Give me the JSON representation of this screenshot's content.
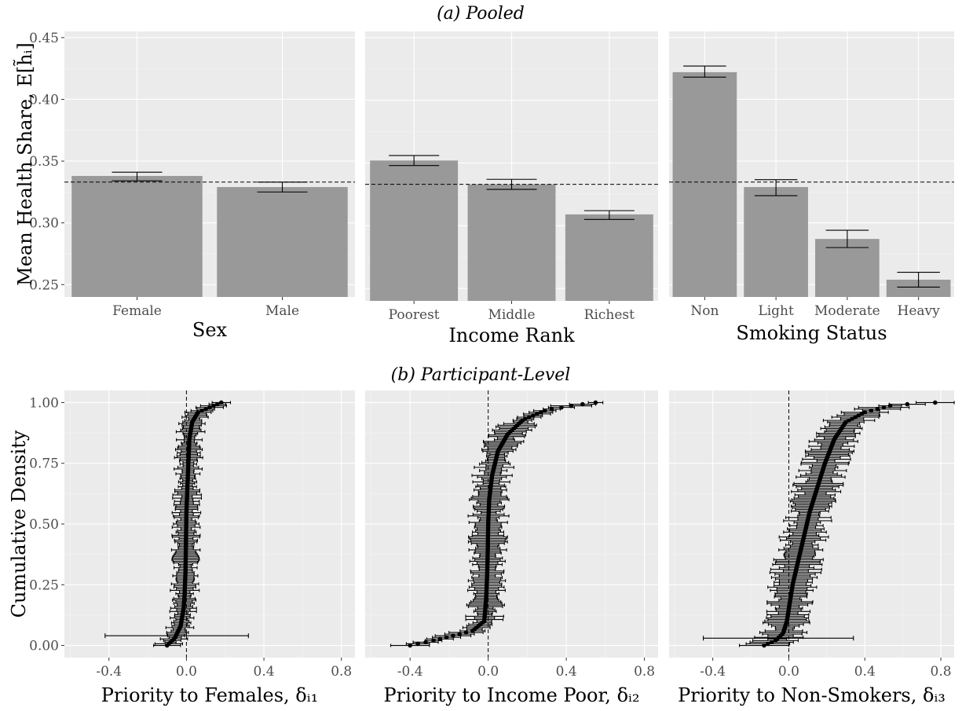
{
  "sections": {
    "pooled": "(a) Pooled",
    "participant": "(b) Participant-Level"
  },
  "chart_data": [
    {
      "type": "bar",
      "categories": [
        "Female",
        "Male"
      ],
      "values": [
        0.338,
        0.329
      ],
      "error_low": [
        0.334,
        0.325
      ],
      "error_high": [
        0.341,
        0.333
      ],
      "xlabel": "Sex",
      "ylabel": "Mean Health Share, E[h̃ᵢ]",
      "ylim": [
        0.24,
        0.455
      ],
      "yticks": [
        "0.25",
        "0.30",
        "0.35",
        "0.40",
        "0.45"
      ],
      "reference_line": 0.333,
      "grid": true
    },
    {
      "type": "bar",
      "categories": [
        "Poorest",
        "Middle",
        "Richest"
      ],
      "values": [
        0.352,
        0.333,
        0.309
      ],
      "error_low": [
        0.348,
        0.329,
        0.305
      ],
      "error_high": [
        0.356,
        0.337,
        0.312
      ],
      "xlabel": "Income Rank",
      "ylim": [
        0.24,
        0.455
      ],
      "reference_line": 0.333,
      "grid": true
    },
    {
      "type": "bar",
      "categories": [
        "Non",
        "Light",
        "Moderate",
        "Heavy"
      ],
      "values": [
        0.422,
        0.329,
        0.287,
        0.254
      ],
      "error_low": [
        0.418,
        0.322,
        0.28,
        0.248
      ],
      "error_high": [
        0.427,
        0.335,
        0.294,
        0.26
      ],
      "xlabel": "Smoking Status",
      "ylim": [
        0.24,
        0.455
      ],
      "reference_line": 0.333,
      "grid": true
    },
    {
      "type": "scatter",
      "xlabel": "Priority to Females, δᵢ₁",
      "ylabel": "Cumulative Density",
      "xlim": [
        -0.63,
        0.87
      ],
      "ylim": [
        -0.05,
        1.05
      ],
      "xticks": [
        "-0.4",
        "0.0",
        "0.4",
        "0.8"
      ],
      "yticks": [
        "0.00",
        "0.25",
        "0.50",
        "0.75",
        "1.00"
      ],
      "reference_line_x": 0,
      "curve": [
        [
          -0.1,
          0
        ],
        [
          -0.06,
          0.03
        ],
        [
          -0.03,
          0.08
        ],
        [
          -0.015,
          0.15
        ],
        [
          -0.01,
          0.2
        ],
        [
          -0.005,
          0.3
        ],
        [
          -0.003,
          0.4
        ],
        [
          -0.001,
          0.5
        ],
        [
          0.0,
          0.55
        ],
        [
          0.005,
          0.65
        ],
        [
          0.01,
          0.75
        ],
        [
          0.015,
          0.85
        ],
        [
          0.03,
          0.92
        ],
        [
          0.06,
          0.96
        ],
        [
          0.12,
          0.98
        ],
        [
          0.18,
          1.0
        ]
      ],
      "error_halfwidth": 0.05,
      "outlier_error": {
        "y": 0.04,
        "x": -0.05,
        "low": -0.42,
        "high": 0.32
      }
    },
    {
      "type": "scatter",
      "xlabel": "Priority to Income Poor, δᵢ₂",
      "xlim": [
        -0.63,
        0.87
      ],
      "ylim": [
        -0.05,
        1.05
      ],
      "xticks": [
        "-0.4",
        "0.0",
        "0.4",
        "0.8"
      ],
      "reference_line_x": 0,
      "curve": [
        [
          -0.4,
          0
        ],
        [
          -0.28,
          0.02
        ],
        [
          -0.18,
          0.04
        ],
        [
          -0.08,
          0.06
        ],
        [
          -0.02,
          0.1
        ],
        [
          -0.01,
          0.2
        ],
        [
          -0.005,
          0.3
        ],
        [
          -0.002,
          0.4
        ],
        [
          0.0,
          0.5
        ],
        [
          0.005,
          0.6
        ],
        [
          0.02,
          0.7
        ],
        [
          0.05,
          0.8
        ],
        [
          0.1,
          0.87
        ],
        [
          0.18,
          0.93
        ],
        [
          0.3,
          0.97
        ],
        [
          0.45,
          0.99
        ],
        [
          0.55,
          1.0
        ]
      ],
      "error_halfwidth": 0.07
    },
    {
      "type": "scatter",
      "xlabel": "Priority to Non-Smokers, δᵢ₃",
      "xlim": [
        -0.63,
        0.87
      ],
      "ylim": [
        -0.05,
        1.05
      ],
      "xticks": [
        "-0.4",
        "0.0",
        "0.4",
        "0.8"
      ],
      "reference_line_x": 0,
      "curve": [
        [
          -0.13,
          0
        ],
        [
          -0.07,
          0.02
        ],
        [
          -0.03,
          0.05
        ],
        [
          -0.01,
          0.1
        ],
        [
          0.0,
          0.15
        ],
        [
          0.02,
          0.25
        ],
        [
          0.05,
          0.35
        ],
        [
          0.08,
          0.45
        ],
        [
          0.11,
          0.55
        ],
        [
          0.15,
          0.65
        ],
        [
          0.19,
          0.75
        ],
        [
          0.24,
          0.85
        ],
        [
          0.3,
          0.92
        ],
        [
          0.4,
          0.96
        ],
        [
          0.55,
          0.99
        ],
        [
          0.77,
          1.0
        ]
      ],
      "error_halfwidth": 0.09,
      "outlier_error": {
        "y": 0.03,
        "x": -0.05,
        "low": -0.45,
        "high": 0.34
      }
    }
  ]
}
